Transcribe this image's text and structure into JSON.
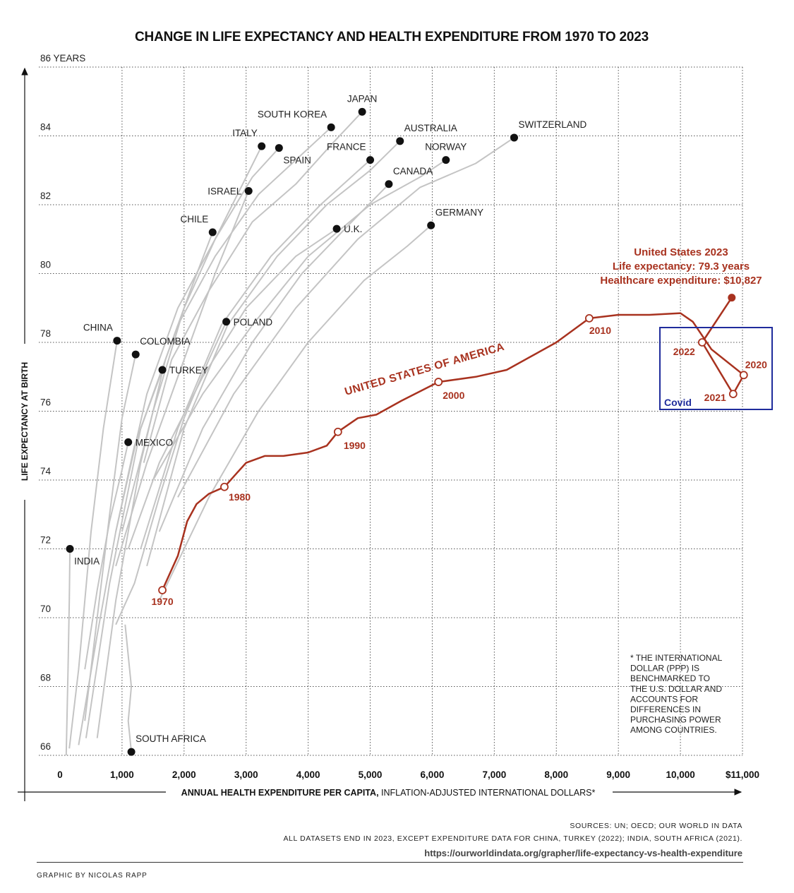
{
  "title": "CHANGE IN LIFE EXPECTANCY AND HEALTH EXPENDITURE FROM 1970 TO 2023",
  "colors": {
    "us": "#a8321f",
    "other": "#c4c4c4",
    "dot": "#111111",
    "covid_box": "#1f2c9c",
    "grid": "#555555"
  },
  "chart_data": {
    "type": "line",
    "title": "CHANGE IN LIFE EXPECTANCY AND HEALTH EXPENDITURE FROM 1970 TO 2023",
    "xlabel_bold": "ANNUAL HEALTH EXPENDITURE PER CAPITA,",
    "xlabel_rest": " INFLATION-ADJUSTED INTERNATIONAL DOLLARS*",
    "ylabel": "LIFE EXPECTANCY AT BIRTH",
    "xlim": [
      0,
      11000
    ],
    "ylim": [
      66,
      86
    ],
    "grid": true,
    "x_ticks": [
      {
        "value": 0,
        "label": "0"
      },
      {
        "value": 1000,
        "label": "1,000"
      },
      {
        "value": 2000,
        "label": "2,000"
      },
      {
        "value": 3000,
        "label": "3,000"
      },
      {
        "value": 4000,
        "label": "4,000"
      },
      {
        "value": 5000,
        "label": "5,000"
      },
      {
        "value": 6000,
        "label": "6,000"
      },
      {
        "value": 7000,
        "label": "7,000"
      },
      {
        "value": 8000,
        "label": "8,000"
      },
      {
        "value": 9000,
        "label": "9,000"
      },
      {
        "value": 10000,
        "label": "10,000"
      },
      {
        "value": 11000,
        "label": "$11,000"
      }
    ],
    "y_ticks": [
      {
        "value": 66,
        "label": "66"
      },
      {
        "value": 68,
        "label": "68"
      },
      {
        "value": 70,
        "label": "70"
      },
      {
        "value": 72,
        "label": "72"
      },
      {
        "value": 74,
        "label": "74"
      },
      {
        "value": 76,
        "label": "76"
      },
      {
        "value": 78,
        "label": "78"
      },
      {
        "value": 80,
        "label": "80"
      },
      {
        "value": 82,
        "label": "82"
      },
      {
        "value": 84,
        "label": "84"
      },
      {
        "value": 86,
        "label": "86 YEARS"
      }
    ],
    "countries": [
      {
        "name": "JAPAN",
        "x": 4870,
        "y": 84.7,
        "label_pos": "above",
        "path": [
          [
            1350,
            74.5
          ],
          [
            1800,
            77.5
          ],
          [
            2400,
            79.5
          ],
          [
            3100,
            81.5
          ],
          [
            3800,
            82.6
          ],
          [
            4400,
            83.8
          ],
          [
            4870,
            84.7
          ]
        ]
      },
      {
        "name": "SOUTH KOREA",
        "x": 4370,
        "y": 84.25,
        "label_pos": "above-left",
        "path": [
          [
            420,
            66.5
          ],
          [
            800,
            71.0
          ],
          [
            1300,
            75.5
          ],
          [
            1900,
            78.5
          ],
          [
            2500,
            80.5
          ],
          [
            3200,
            82.3
          ],
          [
            3800,
            83.3
          ],
          [
            4370,
            84.25
          ]
        ]
      },
      {
        "name": "ITALY",
        "x": 3250,
        "y": 83.7,
        "label_pos": "above-left",
        "path": [
          [
            1000,
            72.5
          ],
          [
            1500,
            76.0
          ],
          [
            2000,
            79.0
          ],
          [
            2500,
            81.0
          ],
          [
            3000,
            82.8
          ],
          [
            3250,
            83.7
          ]
        ]
      },
      {
        "name": "SPAIN",
        "x": 3530,
        "y": 83.65,
        "label_pos": "below-right",
        "path": [
          [
            900,
            72.5
          ],
          [
            1400,
            76.5
          ],
          [
            1900,
            79.0
          ],
          [
            2500,
            81.0
          ],
          [
            3100,
            82.8
          ],
          [
            3530,
            83.65
          ]
        ]
      },
      {
        "name": "AUSTRALIA",
        "x": 5480,
        "y": 83.85,
        "label_pos": "above-right",
        "path": [
          [
            1400,
            71.5
          ],
          [
            2000,
            75.5
          ],
          [
            2700,
            78.5
          ],
          [
            3500,
            80.5
          ],
          [
            4300,
            82.0
          ],
          [
            5000,
            83.0
          ],
          [
            5480,
            83.85
          ]
        ]
      },
      {
        "name": "FRANCE",
        "x": 5000,
        "y": 83.3,
        "label_pos": "above-left",
        "path": [
          [
            1300,
            72.0
          ],
          [
            1900,
            75.5
          ],
          [
            2600,
            78.5
          ],
          [
            3400,
            80.5
          ],
          [
            4200,
            82.0
          ],
          [
            5000,
            83.3
          ]
        ]
      },
      {
        "name": "NORWAY",
        "x": 6220,
        "y": 83.3,
        "label_pos": "above",
        "path": [
          [
            1500,
            74.0
          ],
          [
            2300,
            76.5
          ],
          [
            3100,
            78.5
          ],
          [
            4000,
            80.5
          ],
          [
            5000,
            82.0
          ],
          [
            5800,
            82.8
          ],
          [
            6220,
            83.3
          ]
        ]
      },
      {
        "name": "SWITZERLAND",
        "x": 7320,
        "y": 83.95,
        "label_pos": "above-right",
        "path": [
          [
            1900,
            73.5
          ],
          [
            2800,
            76.5
          ],
          [
            3800,
            79.0
          ],
          [
            4800,
            81.0
          ],
          [
            5800,
            82.5
          ],
          [
            6700,
            83.2
          ],
          [
            7320,
            83.95
          ]
        ]
      },
      {
        "name": "CANADA",
        "x": 5300,
        "y": 82.6,
        "label_pos": "above-right",
        "path": [
          [
            1600,
            72.5
          ],
          [
            2300,
            75.5
          ],
          [
            3100,
            78.0
          ],
          [
            3900,
            80.0
          ],
          [
            4700,
            81.5
          ],
          [
            5300,
            82.6
          ]
        ]
      },
      {
        "name": "ISRAEL",
        "x": 3040,
        "y": 82.4,
        "label_pos": "left",
        "path": [
          [
            900,
            71.5
          ],
          [
            1400,
            74.5
          ],
          [
            2000,
            77.5
          ],
          [
            2500,
            80.0
          ],
          [
            3040,
            82.4
          ]
        ]
      },
      {
        "name": "CHILE",
        "x": 2460,
        "y": 81.2,
        "label_pos": "above-left",
        "path": [
          [
            600,
            66.5
          ],
          [
            900,
            70.5
          ],
          [
            1300,
            74.5
          ],
          [
            1700,
            77.5
          ],
          [
            2100,
            79.5
          ],
          [
            2460,
            81.2
          ]
        ]
      },
      {
        "name": "U.K.",
        "x": 4460,
        "y": 81.3,
        "label_pos": "right",
        "path": [
          [
            1100,
            72.0
          ],
          [
            1600,
            74.5
          ],
          [
            2300,
            77.0
          ],
          [
            3000,
            79.0
          ],
          [
            3800,
            80.5
          ],
          [
            4460,
            81.3
          ]
        ]
      },
      {
        "name": "GERMANY",
        "x": 5980,
        "y": 81.4,
        "label_pos": "above-right",
        "path": [
          [
            1600,
            70.5
          ],
          [
            2400,
            73.5
          ],
          [
            3200,
            76.0
          ],
          [
            4000,
            78.0
          ],
          [
            4900,
            79.8
          ],
          [
            5600,
            80.8
          ],
          [
            5980,
            81.4
          ]
        ]
      },
      {
        "name": "POLAND",
        "x": 2680,
        "y": 78.6,
        "label_pos": "right",
        "path": [
          [
            900,
            69.8
          ],
          [
            1200,
            71.0
          ],
          [
            1600,
            73.5
          ],
          [
            2000,
            75.8
          ],
          [
            2400,
            77.5
          ],
          [
            2680,
            78.6
          ]
        ]
      },
      {
        "name": "CHINA",
        "x": 920,
        "y": 78.05,
        "label_pos": "above-left",
        "path": [
          [
            150,
            66.2
          ],
          [
            300,
            68.5
          ],
          [
            500,
            72.5
          ],
          [
            700,
            75.5
          ],
          [
            920,
            78.05
          ]
        ]
      },
      {
        "name": "COLOMBIA",
        "x": 1220,
        "y": 77.65,
        "label_pos": "above-right",
        "path": [
          [
            400,
            67.0
          ],
          [
            600,
            70.0
          ],
          [
            800,
            73.0
          ],
          [
            1000,
            75.8
          ],
          [
            1220,
            77.65
          ]
        ]
      },
      {
        "name": "TURKEY",
        "x": 1650,
        "y": 77.2,
        "label_pos": "right",
        "path": [
          [
            300,
            66.3
          ],
          [
            600,
            69.5
          ],
          [
            900,
            72.5
          ],
          [
            1200,
            75.0
          ],
          [
            1650,
            77.2
          ]
        ]
      },
      {
        "name": "MEXICO",
        "x": 1100,
        "y": 75.1,
        "label_pos": "right",
        "path": [
          [
            400,
            68.5
          ],
          [
            600,
            70.8
          ],
          [
            800,
            72.8
          ],
          [
            1000,
            74.3
          ],
          [
            1100,
            75.1
          ]
        ]
      },
      {
        "name": "INDIA",
        "x": 160,
        "y": 72.0,
        "label_pos": "below-right",
        "path": [
          [
            100,
            66.0
          ],
          [
            130,
            68.5
          ],
          [
            150,
            70.5
          ],
          [
            160,
            72.0
          ]
        ]
      },
      {
        "name": "SOUTH AFRICA",
        "x": 1150,
        "y": 66.1,
        "label_pos": "above-right",
        "path": [
          [
            1050,
            69.8
          ],
          [
            1150,
            68.0
          ],
          [
            1100,
            67.0
          ],
          [
            1150,
            66.1
          ]
        ]
      }
    ],
    "series": [
      {
        "name": "UNITED STATES OF AMERICA",
        "points": [
          [
            1650,
            70.8
          ],
          [
            1750,
            71.2
          ],
          [
            1900,
            71.8
          ],
          [
            2050,
            72.8
          ],
          [
            2200,
            73.3
          ],
          [
            2400,
            73.6
          ],
          [
            2650,
            73.8
          ],
          [
            2850,
            74.2
          ],
          [
            3000,
            74.5
          ],
          [
            3300,
            74.7
          ],
          [
            3600,
            74.7
          ],
          [
            4000,
            74.8
          ],
          [
            4300,
            75.0
          ],
          [
            4480,
            75.4
          ],
          [
            4800,
            75.8
          ],
          [
            5100,
            75.9
          ],
          [
            5500,
            76.3
          ],
          [
            6100,
            76.85
          ],
          [
            6700,
            77.0
          ],
          [
            7200,
            77.2
          ],
          [
            7600,
            77.6
          ],
          [
            8000,
            78.0
          ],
          [
            8530,
            78.7
          ],
          [
            9000,
            78.8
          ],
          [
            9500,
            78.8
          ],
          [
            10000,
            78.85
          ],
          [
            10200,
            78.6
          ],
          [
            10500,
            77.8
          ],
          [
            11020,
            77.05
          ],
          [
            10850,
            76.5
          ],
          [
            10350,
            78.0
          ],
          [
            10827,
            79.3
          ]
        ],
        "years": [
          {
            "year": "1970",
            "x": 1650,
            "y": 70.8
          },
          {
            "year": "1980",
            "x": 2650,
            "y": 73.8
          },
          {
            "year": "1990",
            "x": 4480,
            "y": 75.4
          },
          {
            "year": "2000",
            "x": 6100,
            "y": 76.85
          },
          {
            "year": "2010",
            "x": 8530,
            "y": 78.7
          },
          {
            "year": "2020",
            "x": 11020,
            "y": 77.05
          },
          {
            "year": "2021",
            "x": 10850,
            "y": 76.5
          },
          {
            "year": "2022",
            "x": 10350,
            "y": 78.0
          }
        ],
        "end": {
          "year": "2023",
          "x": 10827,
          "y": 79.3
        }
      }
    ],
    "annotations": {
      "us_label": "UNITED STATES OF AMERICA",
      "us_2023_line1": "United States 2023",
      "us_2023_line2": "Life expectancy: 79.3 years",
      "us_2023_line3": "Healthcare expenditure: $10,827",
      "covid_label": "Covid",
      "covid_box": {
        "x0": 9650,
        "x1": 11470,
        "y0": 75.9,
        "y1": 78.3
      },
      "footnote": [
        "* THE INTERNATIONAL",
        "DOLLAR (PPP) IS",
        "BENCHMARKED TO",
        "THE U.S. DOLLAR AND",
        "ACCOUNTS FOR",
        "DIFFERENCES IN",
        "PURCHASING POWER",
        "AMONG COUNTRIES."
      ]
    }
  },
  "sources": {
    "line1": "SOURCES: UN; OECD; OUR WORLD IN DATA",
    "line2": "ALL DATASETS END IN 2023, EXCEPT EXPENDITURE DATA FOR CHINA, TURKEY (2022); INDIA, SOUTH AFRICA (2021).",
    "url": "https://ourworldindata.org/grapher/life-expectancy-vs-health-expenditure"
  },
  "credit": "GRAPHIC BY NICOLAS RAPP"
}
